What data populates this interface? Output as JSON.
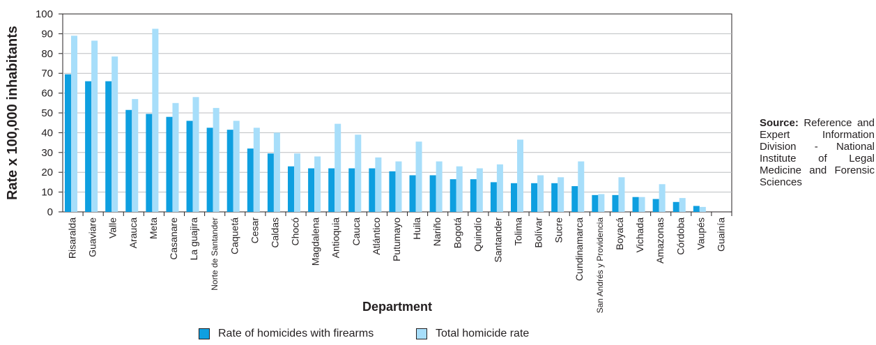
{
  "chart_data": {
    "type": "bar",
    "title": "",
    "xlabel": "Department",
    "ylabel": "Rate x 100,000 inhabitants",
    "ylim": [
      0,
      100
    ],
    "yticks": [
      0,
      10,
      20,
      30,
      40,
      50,
      60,
      70,
      80,
      90,
      100
    ],
    "grid": true,
    "legend_position": "bottom",
    "categories": [
      "Risaralda",
      "Guaviare",
      "Valle",
      "Arauca",
      "Meta",
      "Casanare",
      "La guajira",
      "Norte de Santander",
      "Caquetá",
      "Cesar",
      "Caldas",
      "Chocó",
      "Magdalena",
      "Antioquia",
      "Cauca",
      "Atlántico",
      "Putumayo",
      "Huila",
      "Nariño",
      "Bogotá",
      "Quindío",
      "Santander",
      "Tolima",
      "Bolívar",
      "Sucre",
      "Cundinamarca",
      "San Andrés y Providencia",
      "Boyacá",
      "Vichada",
      "Amazonas",
      "Córdoba",
      "Vaupés",
      "Guainía"
    ],
    "series": [
      {
        "name": "Rate of homicides with firearms",
        "color": "#0e9fe0",
        "values": [
          69.5,
          66,
          66,
          51.5,
          49.5,
          48,
          46,
          42.5,
          41.5,
          32,
          29.5,
          23,
          22,
          22,
          22,
          22,
          20.5,
          18.5,
          18.5,
          16.5,
          16.5,
          15,
          14.5,
          14.5,
          14.5,
          13,
          8.5,
          8.5,
          7.5,
          6.5,
          5,
          3,
          0
        ]
      },
      {
        "name": "Total homicide rate",
        "color": "#a7defa",
        "values": [
          89,
          86.5,
          78.5,
          57,
          92.5,
          55,
          58,
          52.5,
          46,
          42.5,
          40,
          29.5,
          28,
          44.5,
          39,
          27.5,
          25.5,
          35.5,
          25.5,
          23,
          22,
          24,
          36.5,
          18.5,
          17.5,
          25.5,
          9,
          17.5,
          7.5,
          14,
          7,
          2.5,
          0
        ]
      }
    ]
  },
  "source": {
    "label": "Source:",
    "text": "Reference and Expert Information Division - National Institute of Legal Medicine and Forensic Sciences"
  }
}
